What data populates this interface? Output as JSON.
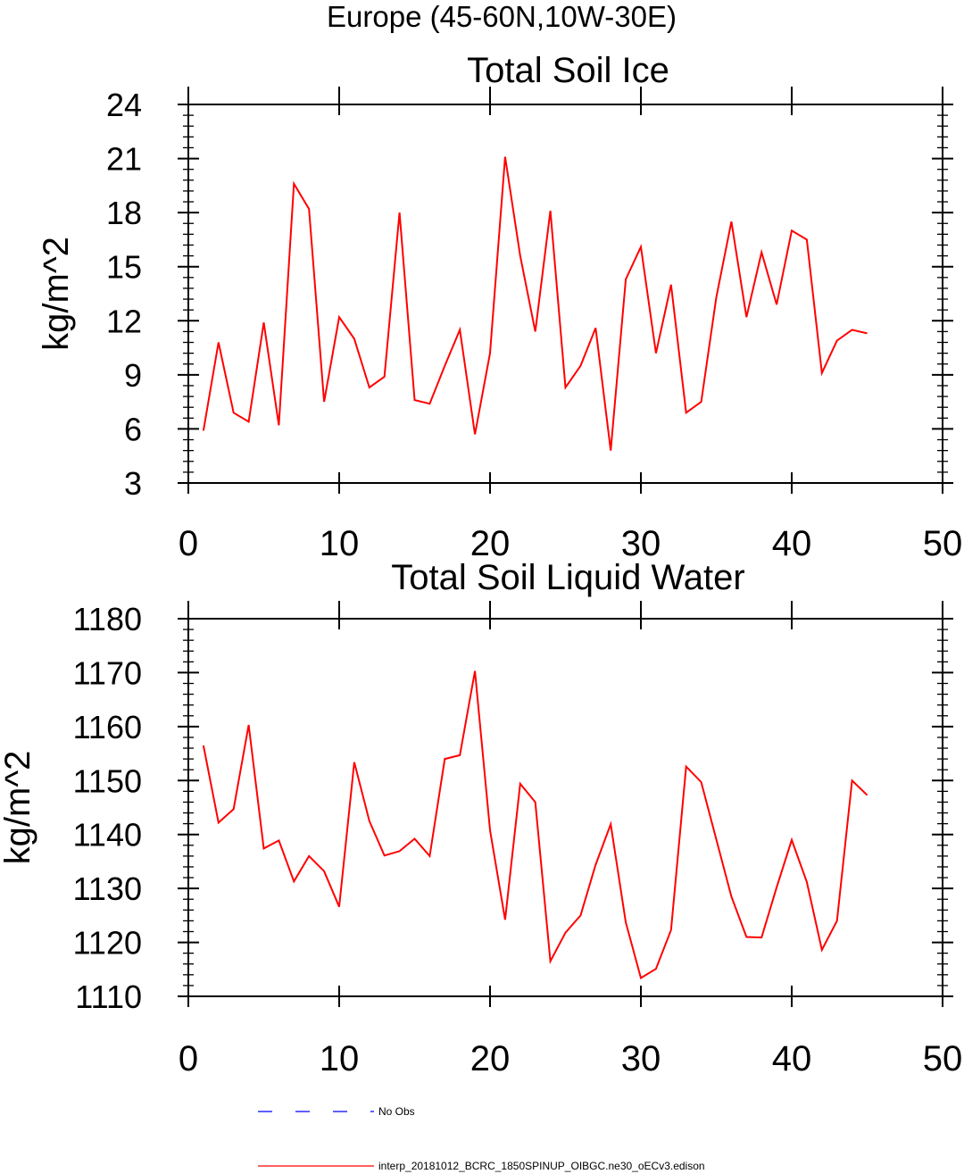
{
  "figure": {
    "suptitle": "Europe (45-60N,10W-30E)"
  },
  "colors": {
    "model_line": "#ff0000",
    "obs_line": "#0000ff",
    "axes": "#000000"
  },
  "legend": {
    "placement": "bottom-center",
    "entries": [
      {
        "label": "No Obs",
        "color": "#0000ff",
        "style": "dashed"
      },
      {
        "label": "interp_20181012_BCRC_1850SPINUP_OIBGC.ne30_oECv3.edison",
        "color": "#ff0000",
        "style": "solid"
      }
    ]
  },
  "chart_data": [
    {
      "type": "line",
      "title": "Total Soil Ice",
      "xlabel": "",
      "ylabel": "kg/m^2",
      "xlim": [
        0,
        50
      ],
      "ylim": [
        3,
        24
      ],
      "xticks": [
        0,
        10,
        20,
        30,
        40,
        50
      ],
      "yticks": [
        3,
        6,
        9,
        12,
        15,
        18,
        21,
        24
      ],
      "grid": false,
      "series": [
        {
          "color": "#ff0000",
          "x": [
            1,
            2,
            3,
            4,
            5,
            6,
            7,
            8,
            9,
            10,
            11,
            12,
            13,
            14,
            15,
            16,
            17,
            18,
            19,
            20,
            21,
            22,
            23,
            24,
            25,
            26,
            27,
            28,
            29,
            30,
            31,
            32,
            33,
            34,
            35,
            36,
            37,
            38,
            39,
            40,
            41,
            42,
            43,
            44,
            45
          ],
          "values": [
            5.9,
            10.8,
            6.9,
            6.4,
            11.9,
            6.2,
            19.6,
            18.2,
            7.5,
            12.2,
            11.0,
            8.3,
            8.9,
            18.0,
            7.6,
            7.4,
            9.5,
            11.5,
            5.7,
            10.2,
            21.1,
            15.6,
            11.4,
            18.1,
            8.3,
            9.5,
            11.6,
            4.8,
            14.3,
            16.1,
            10.2,
            14.0,
            6.9,
            7.5,
            13.3,
            17.5,
            12.2,
            15.8,
            12.9,
            17.0,
            16.5,
            9.1,
            10.9,
            11.5,
            11.3
          ]
        }
      ]
    },
    {
      "type": "line",
      "title": "Total Soil Liquid Water",
      "xlabel": "",
      "ylabel": "kg/m^2",
      "xlim": [
        0,
        50
      ],
      "ylim": [
        1110,
        1180
      ],
      "xticks": [
        0,
        10,
        20,
        30,
        40,
        50
      ],
      "yticks": [
        1110,
        1120,
        1130,
        1140,
        1150,
        1160,
        1170,
        1180
      ],
      "grid": false,
      "series": [
        {
          "color": "#ff0000",
          "x": [
            1,
            2,
            3,
            4,
            5,
            6,
            7,
            8,
            9,
            10,
            11,
            12,
            13,
            14,
            15,
            16,
            17,
            18,
            19,
            20,
            21,
            22,
            23,
            24,
            25,
            26,
            27,
            28,
            29,
            30,
            31,
            32,
            33,
            34,
            35,
            36,
            37,
            38,
            39,
            40,
            41,
            42,
            43,
            44,
            45
          ],
          "values": [
            1156.5,
            1142.2,
            1144.7,
            1160.3,
            1137.4,
            1138.9,
            1131.3,
            1136.0,
            1133.2,
            1126.6,
            1153.4,
            1142.5,
            1136.1,
            1136.9,
            1139.2,
            1136.0,
            1154.0,
            1154.7,
            1170.3,
            1140.8,
            1124.2,
            1149.4,
            1146.0,
            1116.5,
            1121.8,
            1125.0,
            1134.4,
            1141.9,
            1123.7,
            1113.4,
            1115.1,
            1122.3,
            1152.6,
            1149.7,
            1139.1,
            1128.5,
            1121.0,
            1120.9,
            1130.2,
            1139.0,
            1131.2,
            1118.6,
            1124.0,
            1150.0,
            1147.3
          ]
        }
      ]
    }
  ]
}
